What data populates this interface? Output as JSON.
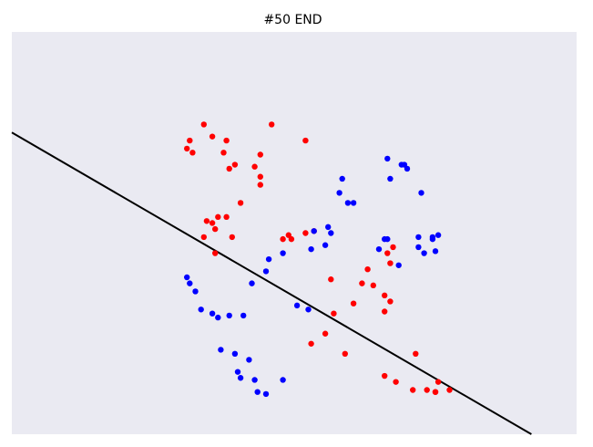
{
  "chart_data": {
    "type": "scatter",
    "title": "#50 END",
    "xlim": [
      0,
      10
    ],
    "ylim": [
      0,
      10
    ],
    "grid": false,
    "background_color": "#eaeaf2",
    "series": [
      {
        "color": "#ff0000",
        "x": [
          3.1,
          3.15,
          3.2,
          3.4,
          3.55,
          3.75,
          3.8,
          3.85,
          3.95,
          4.3,
          4.4,
          4.6,
          5.2,
          4.4,
          4.05,
          3.65,
          3.8,
          3.45,
          3.55,
          3.6,
          3.4,
          3.6,
          3.9,
          4.8,
          4.95,
          5.35,
          5.2,
          4.9,
          4.4,
          5.3,
          5.9,
          5.55,
          5.65,
          6.2,
          6.3,
          5.7,
          6.05,
          6.4,
          6.6,
          6.7,
          6.6,
          6.75,
          6.65,
          6.7,
          7.15,
          6.6,
          6.8,
          7.5,
          7.5,
          7.55,
          7.75,
          7.1,
          7.35
        ],
        "y": [
          7.1,
          7.3,
          7.0,
          7.7,
          7.4,
          7.0,
          7.3,
          6.6,
          6.7,
          6.65,
          6.95,
          7.7,
          7.3,
          6.2,
          5.75,
          5.4,
          5.4,
          5.3,
          5.25,
          5.1,
          4.9,
          4.5,
          4.9,
          4.85,
          4.85,
          5.05,
          5.0,
          4.95,
          6.4,
          2.25,
          2.0,
          2.5,
          3.85,
          3.75,
          4.1,
          3.0,
          3.25,
          3.7,
          3.45,
          3.3,
          3.05,
          4.65,
          4.5,
          4.25,
          2.0,
          1.45,
          1.3,
          1.05,
          1.05,
          1.3,
          1.1,
          1.1,
          1.1
        ]
      },
      {
        "color": "#0000ff",
        "x": [
          3.1,
          3.15,
          3.25,
          3.35,
          3.55,
          3.65,
          3.85,
          3.95,
          4.0,
          4.3,
          4.05,
          4.35,
          4.5,
          4.8,
          4.2,
          3.7,
          4.1,
          4.25,
          4.5,
          4.55,
          4.8,
          5.05,
          5.25,
          5.3,
          5.55,
          5.65,
          5.6,
          5.35,
          5.95,
          6.05,
          6.6,
          6.65,
          6.5,
          6.85,
          7.3,
          7.2,
          7.2,
          7.45,
          7.45,
          7.55,
          7.5,
          7.25,
          7.0,
          6.95,
          6.65,
          6.9,
          6.7,
          5.85,
          5.8
        ],
        "y": [
          3.9,
          3.75,
          3.55,
          3.1,
          3.0,
          2.9,
          2.95,
          2.0,
          1.55,
          1.35,
          1.4,
          1.05,
          1.0,
          1.35,
          1.85,
          2.1,
          2.95,
          3.75,
          4.05,
          4.35,
          4.5,
          3.2,
          3.1,
          4.6,
          4.7,
          5.0,
          5.15,
          5.05,
          5.75,
          5.75,
          4.85,
          4.85,
          4.6,
          4.2,
          4.5,
          4.65,
          4.9,
          4.85,
          4.9,
          4.95,
          4.55,
          6.0,
          6.6,
          6.7,
          6.85,
          6.7,
          6.35,
          6.35,
          6.0
        ]
      }
    ],
    "lines": [
      {
        "color": "#000000",
        "x": [
          0,
          9.2
        ],
        "y": [
          7.5,
          0
        ]
      }
    ]
  }
}
